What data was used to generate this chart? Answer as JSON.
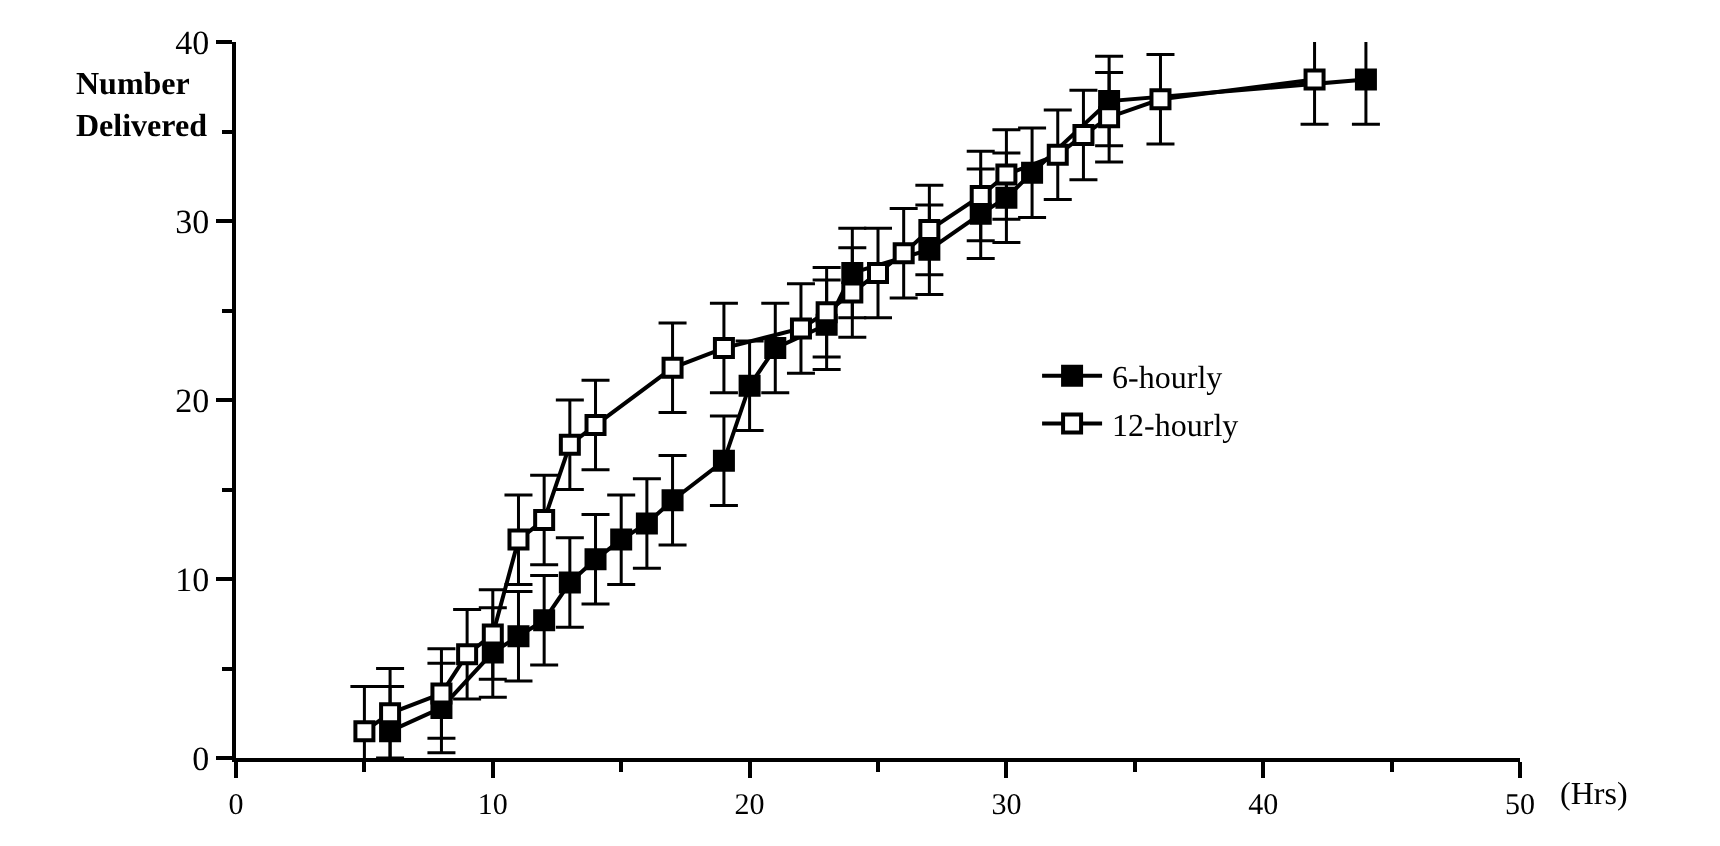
{
  "chart_data": {
    "type": "line",
    "xlabel": "(Hrs)",
    "ylabel": "Number Delivered",
    "xlim": [
      0,
      50
    ],
    "xticks": [
      0,
      10,
      20,
      30,
      40,
      50
    ],
    "ylim": [
      0,
      40
    ],
    "yticks": [
      0,
      10,
      20,
      30,
      40
    ],
    "legend": "right",
    "marker": "square",
    "line_style": "solid",
    "series": [
      {
        "name": "6-hourly",
        "color": "#000000",
        "x": [
          6,
          8,
          10,
          11,
          12,
          13,
          14,
          15,
          16,
          17,
          19,
          20,
          21,
          23,
          24,
          27,
          29,
          30,
          31,
          34,
          44
        ],
        "values": [
          1.5,
          2.8,
          5.9,
          6.8,
          7.7,
          9.8,
          11.1,
          12.2,
          13.1,
          14.4,
          16.6,
          20.8,
          22.9,
          24.2,
          27.1,
          28.4,
          30.4,
          31.3,
          32.7,
          36.7,
          37.9
        ],
        "errors": [
          2.5,
          2.5,
          2.5,
          2.5,
          2.5,
          2.5,
          2.5,
          2.5,
          2.5,
          2.5,
          2.5,
          2.5,
          2.5,
          2.5,
          2.5,
          2.5,
          2.5,
          2.5,
          2.5,
          2.5,
          2.5
        ]
      },
      {
        "name": "12-hourly",
        "color": "#000000",
        "x": [
          5,
          6,
          8,
          9,
          10,
          11,
          12,
          13,
          14,
          17,
          19,
          22,
          23,
          24,
          25,
          26,
          27,
          29,
          30,
          32,
          33,
          34,
          36,
          42
        ],
        "values": [
          1.5,
          2.5,
          3.6,
          5.8,
          6.9,
          12.2,
          13.3,
          17.5,
          18.6,
          21.8,
          22.9,
          24.0,
          24.9,
          26.0,
          27.1,
          28.2,
          29.5,
          31.4,
          32.6,
          33.7,
          34.8,
          35.8,
          36.8,
          37.9
        ],
        "errors": [
          2.5,
          2.5,
          2.5,
          2.5,
          2.5,
          2.5,
          2.5,
          2.5,
          2.5,
          2.5,
          2.5,
          2.5,
          2.5,
          2.5,
          2.5,
          2.5,
          2.5,
          2.5,
          2.5,
          2.5,
          2.5,
          2.5,
          2.5,
          2.5
        ]
      }
    ]
  }
}
